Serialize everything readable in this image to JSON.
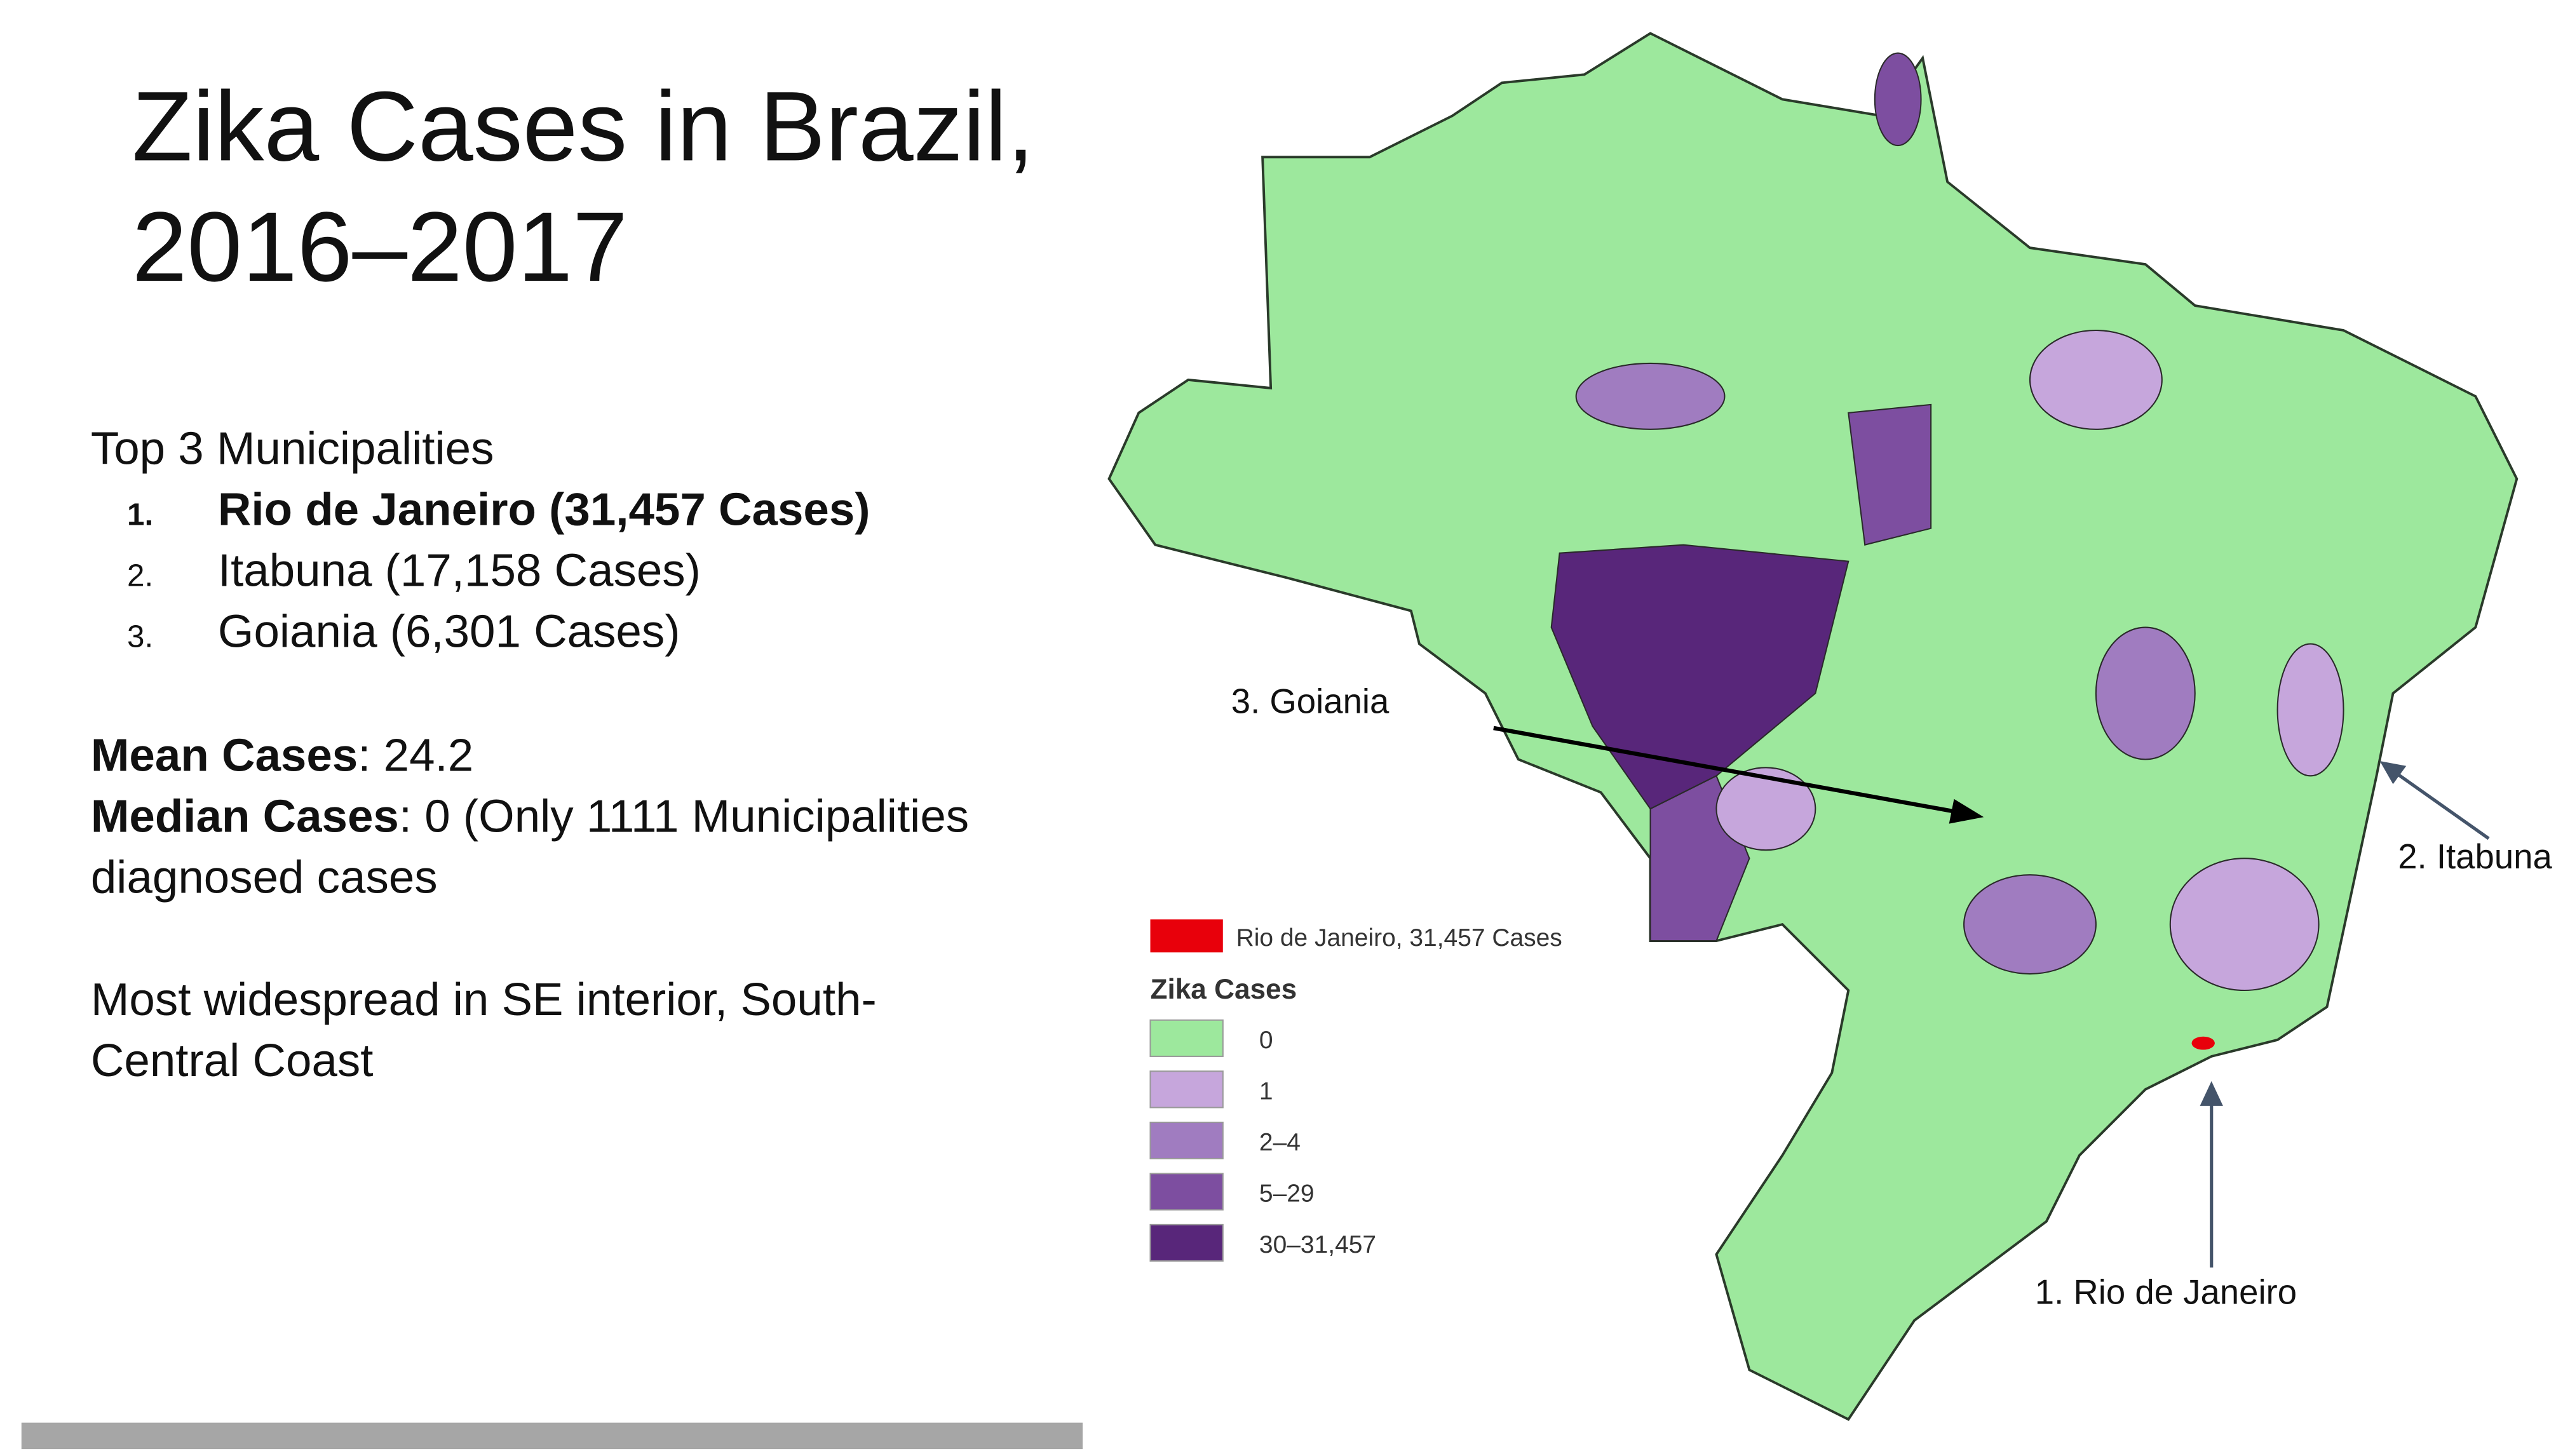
{
  "title": {
    "line1": "Zika Cases in Brazil,",
    "line2": "2016–2017"
  },
  "top": {
    "heading": "Top 3 Municipalities",
    "items": [
      {
        "number": "1.",
        "text": "Rio de Janeiro (31,457 Cases)",
        "bold": true
      },
      {
        "number": "2.",
        "text": "Itabuna (17,158 Cases)",
        "bold": false
      },
      {
        "number": "3.",
        "text": "Goiania (6,301 Cases)",
        "bold": false
      }
    ]
  },
  "stats": {
    "mean": {
      "label": "Mean Cases",
      "text": ": 24.2"
    },
    "median": {
      "label": "Median Cases",
      "text": ": 0 (Only 1111 Municipalities",
      "text2": "diagnosed cases"
    }
  },
  "note": {
    "line1": "Most widespread in SE interior, South-",
    "line2": "Central Coast"
  },
  "map": {
    "annotations": [
      "3. Goiania",
      "2. Itabuna",
      "1.  Rio de Janeiro"
    ],
    "legend": {
      "highlight": {
        "label": "Rio de Janeiro, 31,457 Cases",
        "color": "#e8000b"
      },
      "title": "Zika Cases",
      "items": [
        {
          "label": "0",
          "color": "#9de89d"
        },
        {
          "label": "1",
          "color": "#c6a6dc"
        },
        {
          "label": "2–4",
          "color": "#a07cc0"
        },
        {
          "label": "5–29",
          "color": "#7d4ea0"
        },
        {
          "label": "30–31,457",
          "color": "#58267a"
        }
      ]
    }
  }
}
